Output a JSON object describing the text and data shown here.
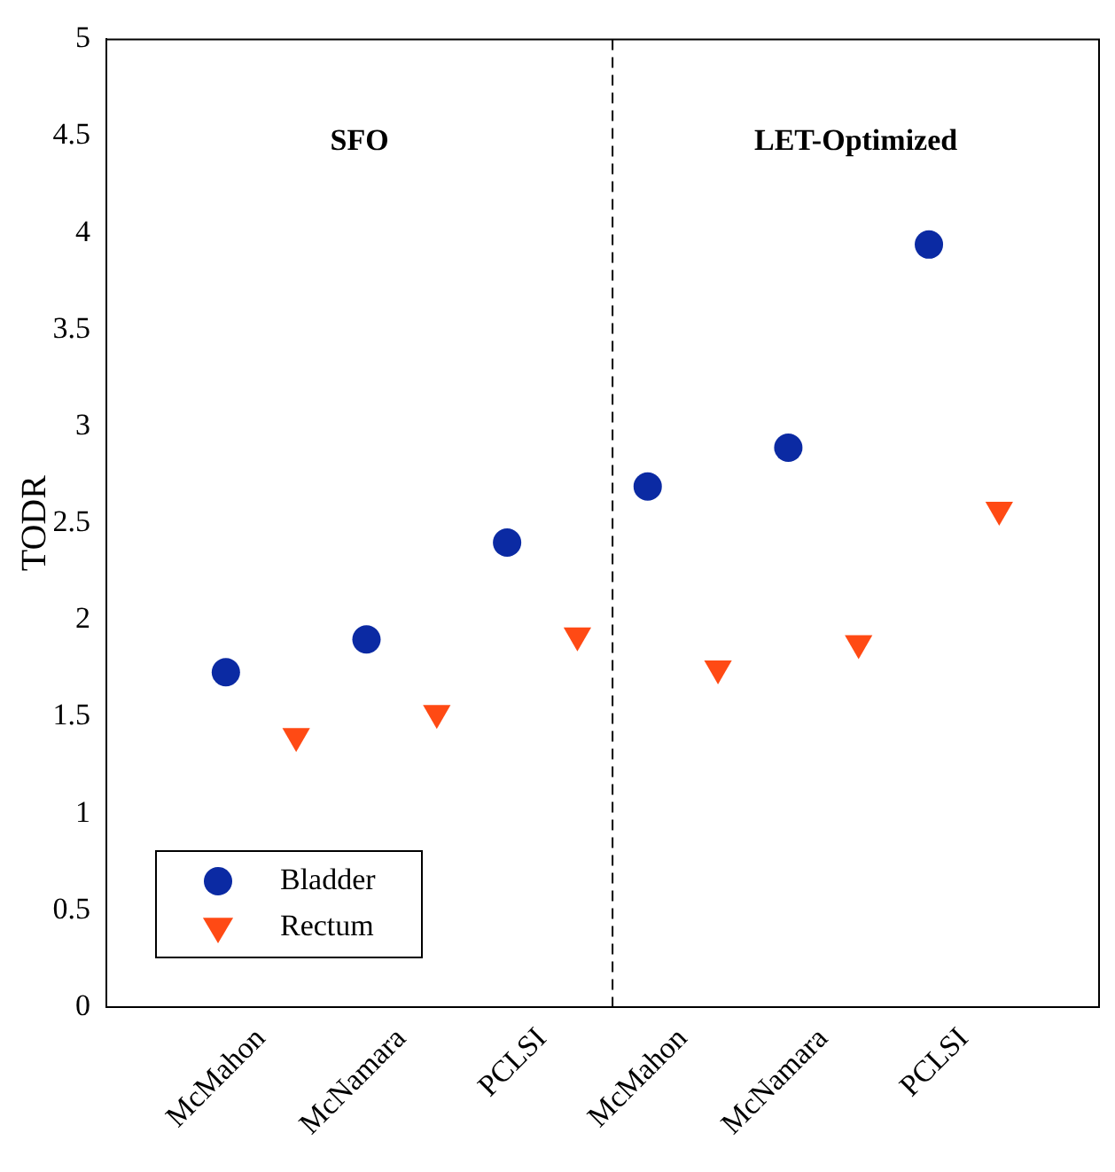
{
  "chart_data": {
    "type": "scatter",
    "ylabel": "TODR",
    "categories": [
      "McMahon",
      "McNamara",
      "PCLSI",
      "McMahon",
      "McNamara",
      "PCLSI"
    ],
    "ylim": [
      0,
      5
    ],
    "yticks": [
      0,
      0.5,
      1,
      1.5,
      2,
      2.5,
      3,
      3.5,
      4,
      4.5,
      5
    ],
    "series": [
      {
        "name": "Bladder",
        "color": "#0b2aa3",
        "marker": "circle",
        "values": [
          1.73,
          1.9,
          2.4,
          2.69,
          2.89,
          3.94
        ]
      },
      {
        "name": "Rectum",
        "color": "#ff4a14",
        "marker": "triangle",
        "values": [
          1.4,
          1.52,
          1.92,
          1.75,
          1.88,
          2.57
        ]
      }
    ],
    "annotations": [
      "SFO",
      "LET-Optimized"
    ],
    "legend": "bottom left",
    "grid": false
  }
}
